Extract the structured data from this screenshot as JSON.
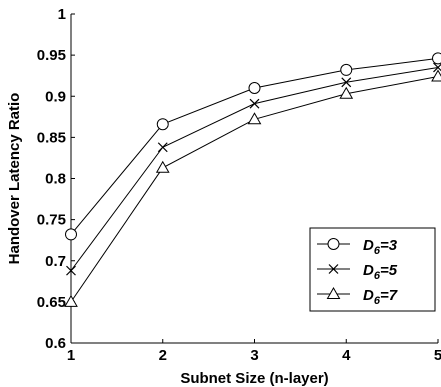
{
  "chart_data": {
    "type": "line",
    "xlabel": "Subnet Size (n-layer)",
    "ylabel": "Handover Latency Ratio",
    "xlim": [
      1,
      5
    ],
    "ylim": [
      0.6,
      1
    ],
    "xticks": [
      "1",
      "2",
      "3",
      "4",
      "5"
    ],
    "yticks": [
      "0.6",
      "0.65",
      "0.7",
      "0.75",
      "0.8",
      "0.85",
      "0.9",
      "0.95",
      "1"
    ],
    "grid": false,
    "legend_position": "bottom-right",
    "x": [
      1,
      2,
      3,
      4,
      5
    ],
    "series": [
      {
        "name_main": "D",
        "name_sub": "6",
        "name_tail": "=3",
        "marker": "circle",
        "values": [
          0.732,
          0.866,
          0.91,
          0.932,
          0.946
        ]
      },
      {
        "name_main": "D",
        "name_sub": "6",
        "name_tail": "=5",
        "marker": "x",
        "values": [
          0.688,
          0.838,
          0.891,
          0.917,
          0.935
        ]
      },
      {
        "name_main": "D",
        "name_sub": "6",
        "name_tail": "=7",
        "marker": "triangle",
        "values": [
          0.65,
          0.813,
          0.872,
          0.903,
          0.924
        ]
      }
    ]
  }
}
